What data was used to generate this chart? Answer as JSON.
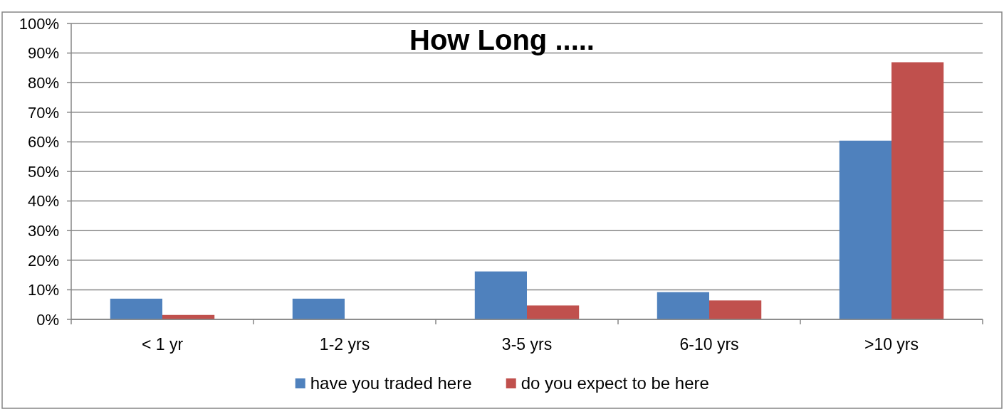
{
  "chart_data": {
    "type": "bar",
    "title": "How Long .....",
    "categories": [
      "< 1 yr",
      "1-2 yrs",
      "3-5 yrs",
      "6-10 yrs",
      ">10 yrs"
    ],
    "series": [
      {
        "name": "have you traded here",
        "color": "#4f81bd",
        "values": [
          7.0,
          7.0,
          16.2,
          9.2,
          60.4
        ]
      },
      {
        "name": "do you expect to be here",
        "color": "#c0504d",
        "values": [
          1.5,
          0,
          4.7,
          6.4,
          86.9
        ]
      }
    ],
    "ylim": [
      0,
      100
    ],
    "yticks": [
      {
        "value": 0,
        "label": "0%"
      },
      {
        "value": 10,
        "label": "10%"
      },
      {
        "value": 20,
        "label": "20%"
      },
      {
        "value": 30,
        "label": "30%"
      },
      {
        "value": 40,
        "label": "40%"
      },
      {
        "value": 50,
        "label": "50%"
      },
      {
        "value": 60,
        "label": "60%"
      },
      {
        "value": 70,
        "label": "70%"
      },
      {
        "value": 80,
        "label": "80%"
      },
      {
        "value": 90,
        "label": "90%"
      },
      {
        "value": 100,
        "label": "100%"
      }
    ],
    "grid": "y",
    "legend": "bottom"
  }
}
